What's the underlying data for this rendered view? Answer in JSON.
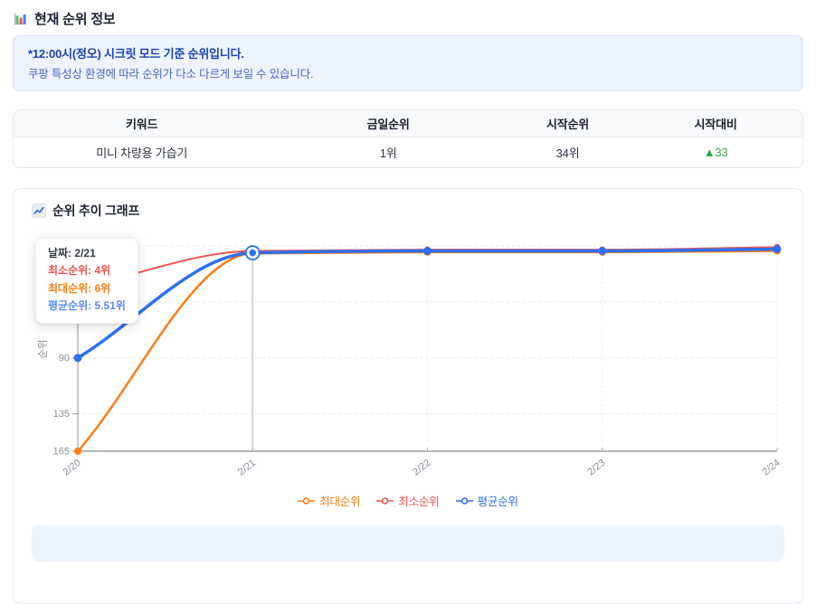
{
  "header": {
    "title": "현재 순위 정보"
  },
  "notice": {
    "line1": "*12:00시(정오) 시크릿 모드 기준 순위입니다.",
    "line2": "쿠팡 특성상 환경에 따라 순위가 다소 다르게 보일 수 있습니다."
  },
  "table": {
    "headers": [
      "키워드",
      "금일순위",
      "시작순위",
      "시작대비"
    ],
    "rows": [
      {
        "keyword": "미니 차량용 가습기",
        "today_rank": "1위",
        "start_rank": "34위",
        "delta": "▲33",
        "delta_direction": "up",
        "delta_color": "#28a745"
      }
    ]
  },
  "chart_section": {
    "title": "순위 추이 그래프"
  },
  "tooltip": {
    "date": "날짜: 2/21",
    "min": "최소순위: 4위",
    "max": "최대순위: 6위",
    "avg": "평균순위: 5.51위"
  },
  "legend": [
    {
      "label": "최대순위",
      "color": "#fd7e14"
    },
    {
      "label": "최소순위",
      "color": "#ef5350"
    },
    {
      "label": "평균순위",
      "color": "#2f6fed"
    }
  ],
  "chart_data": {
    "type": "line",
    "title": "순위 추이 그래프",
    "x": [
      "2/20",
      "2/21",
      "2/22",
      "2/23",
      "2/24"
    ],
    "series": [
      {
        "name": "최대순위",
        "color": "#fd7e14",
        "values": [
          165,
          6,
          5,
          5,
          4
        ]
      },
      {
        "name": "최소순위",
        "color": "#ef5350",
        "values": [
          34,
          4,
          3,
          3,
          1
        ]
      },
      {
        "name": "평균순위",
        "color": "#2f6fed",
        "values": [
          90,
          5.51,
          4,
          4,
          2.5
        ]
      }
    ],
    "ylabel": "순위",
    "xlabel": "",
    "y_axis": {
      "inverted": true,
      "min": 0,
      "max": 165,
      "visible_tick_labels": [
        90,
        135,
        165
      ],
      "gridline_ranks": [
        0,
        45,
        90,
        135
      ]
    },
    "x_axis": {
      "labels_rotated": true
    },
    "highlight": {
      "x_index": 1,
      "series": "평균순위",
      "values_at_highlight": {
        "최소순위": "4위",
        "최대순위": "6위",
        "평균순위": "5.51위"
      }
    },
    "grid": "dotted",
    "legend_position": "bottom"
  }
}
